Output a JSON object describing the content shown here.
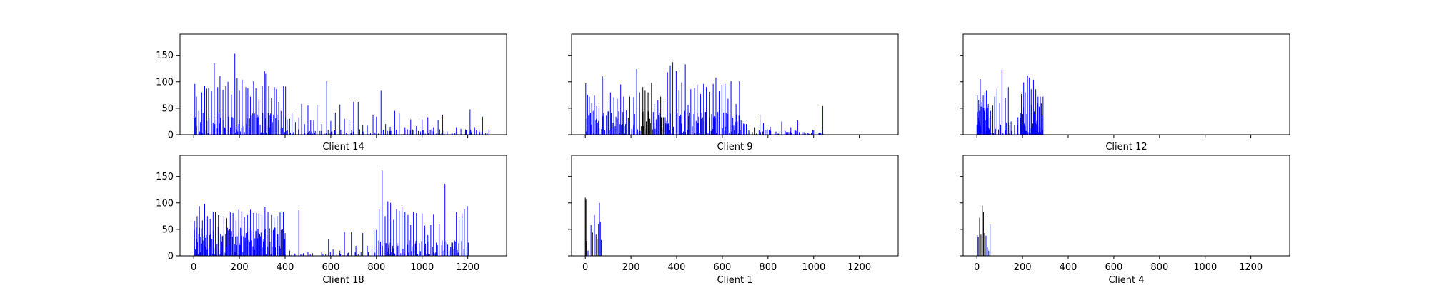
{
  "figure": {
    "background": "#ffffff",
    "bar_colors": {
      "blue": "#0000ff",
      "dark": "#000000"
    }
  },
  "chart_data": [
    {
      "type": "bar",
      "title": "",
      "xlabel": "Client 14",
      "ylabel": "",
      "xlim": [
        -60,
        1370
      ],
      "ylim": [
        0,
        190
      ],
      "xticks": [
        "0",
        "200",
        "400",
        "600",
        "800",
        "1000",
        "1200"
      ],
      "yticks": [
        "0",
        "50",
        "100",
        "150"
      ],
      "show_xtick_labels": false,
      "show_ytick_labels": true,
      "data_extent": 1300,
      "seed": 14,
      "peaks": [
        [
          5,
          96
        ],
        [
          12,
          72
        ],
        [
          22,
          45
        ],
        [
          35,
          80
        ],
        [
          48,
          93
        ],
        [
          57,
          87
        ],
        [
          65,
          88
        ],
        [
          78,
          82
        ],
        [
          90,
          135
        ],
        [
          105,
          90
        ],
        [
          115,
          111
        ],
        [
          128,
          85
        ],
        [
          140,
          92
        ],
        [
          150,
          100
        ],
        [
          165,
          76
        ],
        [
          180,
          153
        ],
        [
          190,
          107
        ],
        [
          200,
          83
        ],
        [
          212,
          104
        ],
        [
          220,
          95
        ],
        [
          228,
          90
        ],
        [
          237,
          88
        ],
        [
          248,
          72
        ],
        [
          262,
          101
        ],
        [
          272,
          88
        ],
        [
          285,
          67
        ],
        [
          300,
          92
        ],
        [
          310,
          120
        ],
        [
          315,
          115
        ],
        [
          328,
          92
        ],
        [
          340,
          70
        ],
        [
          353,
          90
        ],
        [
          362,
          86
        ],
        [
          372,
          62
        ],
        [
          382,
          45
        ],
        [
          393,
          92
        ],
        [
          402,
          91
        ],
        [
          420,
          30
        ],
        [
          430,
          40
        ],
        [
          445,
          24
        ],
        [
          460,
          33
        ],
        [
          472,
          58
        ],
        [
          485,
          20
        ],
        [
          500,
          55
        ],
        [
          512,
          28
        ],
        [
          525,
          27
        ],
        [
          540,
          56
        ],
        [
          560,
          20
        ],
        [
          582,
          101
        ],
        [
          600,
          26
        ],
        [
          620,
          42
        ],
        [
          640,
          57
        ],
        [
          660,
          30
        ],
        [
          680,
          27
        ],
        [
          700,
          62
        ],
        [
          720,
          62
        ],
        [
          740,
          18
        ],
        [
          760,
          17
        ],
        [
          785,
          38
        ],
        [
          800,
          34
        ],
        [
          820,
          83
        ],
        [
          840,
          20
        ],
        [
          860,
          15
        ],
        [
          880,
          45
        ],
        [
          900,
          40
        ],
        [
          925,
          14
        ],
        [
          950,
          29
        ],
        [
          975,
          16
        ],
        [
          1000,
          29
        ],
        [
          1025,
          33
        ],
        [
          1050,
          14
        ],
        [
          1070,
          28
        ],
        [
          1090,
          38
        ],
        [
          1110,
          6
        ],
        [
          1130,
          3
        ],
        [
          1150,
          14
        ],
        [
          1170,
          11
        ],
        [
          1190,
          10
        ],
        [
          1210,
          48
        ],
        [
          1230,
          14
        ],
        [
          1250,
          10
        ],
        [
          1265,
          34
        ],
        [
          1285,
          3
        ]
      ],
      "fill": [
        {
          "from": 0,
          "to": 410,
          "step": 4,
          "max": 42,
          "chance": 0.85
        },
        {
          "from": 410,
          "to": 1300,
          "step": 5,
          "max": 10,
          "chance": 0.55
        }
      ]
    },
    {
      "type": "bar",
      "title": "",
      "xlabel": "Client 9",
      "ylabel": "",
      "xlim": [
        -60,
        1370
      ],
      "ylim": [
        0,
        190
      ],
      "xticks": [
        "0",
        "200",
        "400",
        "600",
        "800",
        "1000",
        "1200"
      ],
      "yticks": [
        "0",
        "50",
        "100",
        "150"
      ],
      "show_xtick_labels": false,
      "show_ytick_labels": false,
      "data_extent": 1050,
      "seed": 9,
      "peaks": [
        [
          2,
          97
        ],
        [
          10,
          75
        ],
        [
          18,
          72
        ],
        [
          28,
          60
        ],
        [
          40,
          74
        ],
        [
          50,
          54
        ],
        [
          60,
          51
        ],
        [
          75,
          110
        ],
        [
          82,
          108
        ],
        [
          95,
          70
        ],
        [
          110,
          80
        ],
        [
          125,
          71
        ],
        [
          140,
          68
        ],
        [
          155,
          95
        ],
        [
          168,
          72
        ],
        [
          180,
          46
        ],
        [
          195,
          72
        ],
        [
          212,
          71
        ],
        [
          225,
          124
        ],
        [
          238,
          80
        ],
        [
          252,
          90
        ],
        [
          262,
          83
        ],
        [
          275,
          80
        ],
        [
          290,
          98
        ],
        [
          302,
          58
        ],
        [
          318,
          65
        ],
        [
          330,
          72
        ],
        [
          345,
          70
        ],
        [
          360,
          118
        ],
        [
          372,
          131
        ],
        [
          383,
          137
        ],
        [
          398,
          120
        ],
        [
          410,
          83
        ],
        [
          422,
          99
        ],
        [
          438,
          133
        ],
        [
          450,
          56
        ],
        [
          462,
          86
        ],
        [
          478,
          88
        ],
        [
          490,
          95
        ],
        [
          505,
          77
        ],
        [
          518,
          96
        ],
        [
          530,
          90
        ],
        [
          545,
          81
        ],
        [
          560,
          96
        ],
        [
          572,
          108
        ],
        [
          586,
          82
        ],
        [
          598,
          94
        ],
        [
          612,
          96
        ],
        [
          625,
          68
        ],
        [
          638,
          101
        ],
        [
          660,
          58
        ],
        [
          675,
          101
        ],
        [
          705,
          20
        ],
        [
          720,
          6
        ],
        [
          740,
          14
        ],
        [
          765,
          38
        ],
        [
          780,
          22
        ],
        [
          795,
          8
        ],
        [
          810,
          15
        ],
        [
          835,
          6
        ],
        [
          860,
          25
        ],
        [
          880,
          5
        ],
        [
          900,
          14
        ],
        [
          920,
          8
        ],
        [
          930,
          27
        ],
        [
          950,
          5
        ],
        [
          975,
          4
        ],
        [
          990,
          3
        ],
        [
          1000,
          8
        ],
        [
          1015,
          6
        ],
        [
          1025,
          4
        ],
        [
          1040,
          54
        ]
      ],
      "fill": [
        {
          "from": 0,
          "to": 700,
          "step": 4,
          "max": 45,
          "chance": 0.9
        },
        {
          "from": 700,
          "to": 1045,
          "step": 5,
          "max": 10,
          "chance": 0.6
        }
      ],
      "dark_ranges": [
        [
          245,
          295
        ],
        [
          328,
          345
        ],
        [
          730,
          760
        ]
      ]
    },
    {
      "type": "bar",
      "title": "",
      "xlabel": "Client 12",
      "ylabel": "",
      "xlim": [
        -60,
        1370
      ],
      "ylim": [
        0,
        190
      ],
      "xticks": [
        "0",
        "200",
        "400",
        "600",
        "800",
        "1000",
        "1200"
      ],
      "yticks": [
        "0",
        "50",
        "100",
        "150"
      ],
      "show_xtick_labels": false,
      "show_ytick_labels": false,
      "data_extent": 295,
      "seed": 12,
      "peaks": [
        [
          2,
          74
        ],
        [
          8,
          66
        ],
        [
          15,
          105
        ],
        [
          22,
          62
        ],
        [
          28,
          74
        ],
        [
          35,
          80
        ],
        [
          42,
          83
        ],
        [
          50,
          58
        ],
        [
          60,
          45
        ],
        [
          70,
          55
        ],
        [
          78,
          72
        ],
        [
          88,
          87
        ],
        [
          100,
          60
        ],
        [
          110,
          123
        ],
        [
          125,
          70
        ],
        [
          138,
          90
        ],
        [
          150,
          25
        ],
        [
          165,
          18
        ],
        [
          180,
          33
        ],
        [
          195,
          77
        ],
        [
          205,
          99
        ],
        [
          212,
          80
        ],
        [
          222,
          112
        ],
        [
          230,
          108
        ],
        [
          238,
          86
        ],
        [
          248,
          104
        ],
        [
          258,
          86
        ],
        [
          268,
          72
        ],
        [
          278,
          72
        ],
        [
          290,
          72
        ]
      ],
      "fill": [
        {
          "from": 0,
          "to": 60,
          "step": 2,
          "max": 60,
          "chance": 0.95
        },
        {
          "from": 60,
          "to": 190,
          "step": 4,
          "max": 25,
          "chance": 0.6
        },
        {
          "from": 190,
          "to": 292,
          "step": 2,
          "max": 60,
          "chance": 0.95
        }
      ]
    },
    {
      "type": "bar",
      "title": "",
      "xlabel": "Client 18",
      "ylabel": "",
      "xlim": [
        -60,
        1370
      ],
      "ylim": [
        0,
        190
      ],
      "xticks": [
        "0",
        "200",
        "400",
        "600",
        "800",
        "1000",
        "1200"
      ],
      "yticks": [
        "0",
        "50",
        "100",
        "150"
      ],
      "show_xtick_labels": true,
      "show_ytick_labels": true,
      "data_extent": 1210,
      "seed": 18,
      "peaks": [
        [
          3,
          66
        ],
        [
          15,
          75
        ],
        [
          25,
          94
        ],
        [
          38,
          67
        ],
        [
          48,
          98
        ],
        [
          60,
          75
        ],
        [
          72,
          70
        ],
        [
          85,
          83
        ],
        [
          95,
          83
        ],
        [
          108,
          77
        ],
        [
          120,
          78
        ],
        [
          132,
          75
        ],
        [
          145,
          71
        ],
        [
          160,
          82
        ],
        [
          172,
          81
        ],
        [
          185,
          67
        ],
        [
          197,
          87
        ],
        [
          210,
          84
        ],
        [
          222,
          73
        ],
        [
          235,
          77
        ],
        [
          248,
          87
        ],
        [
          262,
          81
        ],
        [
          275,
          81
        ],
        [
          285,
          80
        ],
        [
          298,
          77
        ],
        [
          312,
          93
        ],
        [
          325,
          83
        ],
        [
          340,
          77
        ],
        [
          352,
          72
        ],
        [
          365,
          75
        ],
        [
          378,
          82
        ],
        [
          392,
          83
        ],
        [
          400,
          33
        ],
        [
          420,
          10
        ],
        [
          440,
          5
        ],
        [
          460,
          86
        ],
        [
          480,
          5
        ],
        [
          500,
          8
        ],
        [
          520,
          5
        ],
        [
          560,
          7
        ],
        [
          590,
          31
        ],
        [
          610,
          12
        ],
        [
          640,
          10
        ],
        [
          660,
          45
        ],
        [
          690,
          45
        ],
        [
          710,
          19
        ],
        [
          740,
          43
        ],
        [
          760,
          19
        ],
        [
          780,
          12
        ],
        [
          790,
          49
        ],
        [
          800,
          49
        ],
        [
          812,
          88
        ],
        [
          825,
          161
        ],
        [
          838,
          75
        ],
        [
          850,
          103
        ],
        [
          862,
          100
        ],
        [
          875,
          68
        ],
        [
          888,
          88
        ],
        [
          900,
          85
        ],
        [
          912,
          93
        ],
        [
          925,
          83
        ],
        [
          938,
          77
        ],
        [
          950,
          58
        ],
        [
          962,
          82
        ],
        [
          975,
          81
        ],
        [
          988,
          24
        ],
        [
          1000,
          80
        ],
        [
          1012,
          57
        ],
        [
          1025,
          39
        ],
        [
          1038,
          58
        ],
        [
          1050,
          78
        ],
        [
          1062,
          25
        ],
        [
          1075,
          60
        ],
        [
          1088,
          29
        ],
        [
          1100,
          136
        ],
        [
          1112,
          21
        ],
        [
          1125,
          17
        ],
        [
          1140,
          5
        ],
        [
          1150,
          83
        ],
        [
          1162,
          70
        ],
        [
          1175,
          80
        ],
        [
          1185,
          88
        ],
        [
          1198,
          94
        ]
      ],
      "fill": [
        {
          "from": 0,
          "to": 400,
          "step": 3,
          "max": 55,
          "chance": 0.95
        },
        {
          "from": 400,
          "to": 800,
          "step": 6,
          "max": 8,
          "chance": 0.45
        },
        {
          "from": 800,
          "to": 1205,
          "step": 4,
          "max": 30,
          "chance": 0.7
        }
      ]
    },
    {
      "type": "bar",
      "title": "",
      "xlabel": "Client 1",
      "ylabel": "",
      "xlim": [
        -60,
        1370
      ],
      "ylim": [
        0,
        190
      ],
      "xticks": [
        "0",
        "200",
        "400",
        "600",
        "800",
        "1000",
        "1200"
      ],
      "yticks": [
        "0",
        "50",
        "100",
        "150"
      ],
      "show_xtick_labels": true,
      "show_ytick_labels": false,
      "data_extent": 70,
      "seed": 1,
      "peaks": [
        [
          0,
          110
        ],
        [
          3,
          106
        ],
        [
          6,
          28
        ],
        [
          12,
          10
        ],
        [
          25,
          58
        ],
        [
          32,
          44
        ],
        [
          40,
          77
        ],
        [
          47,
          40
        ],
        [
          52,
          32
        ],
        [
          58,
          60
        ],
        [
          62,
          100
        ],
        [
          66,
          64
        ],
        [
          70,
          30
        ]
      ],
      "fill": [],
      "dark_ranges": [
        [
          0,
          10
        ],
        [
          44,
          55
        ]
      ]
    },
    {
      "type": "bar",
      "title": "",
      "xlabel": "Client 4",
      "ylabel": "",
      "xlim": [
        -60,
        1370
      ],
      "ylim": [
        0,
        190
      ],
      "xticks": [
        "0",
        "200",
        "400",
        "600",
        "800",
        "1000",
        "1200"
      ],
      "yticks": [
        "0",
        "50",
        "100",
        "150"
      ],
      "show_xtick_labels": true,
      "show_ytick_labels": false,
      "data_extent": 60,
      "seed": 4,
      "peaks": [
        [
          2,
          39
        ],
        [
          6,
          35
        ],
        [
          12,
          72
        ],
        [
          18,
          40
        ],
        [
          24,
          95
        ],
        [
          29,
          83
        ],
        [
          34,
          43
        ],
        [
          40,
          38
        ],
        [
          46,
          16
        ],
        [
          52,
          10
        ],
        [
          58,
          60
        ]
      ],
      "fill": [],
      "dark_ranges": [
        [
          5,
          35
        ]
      ]
    }
  ]
}
